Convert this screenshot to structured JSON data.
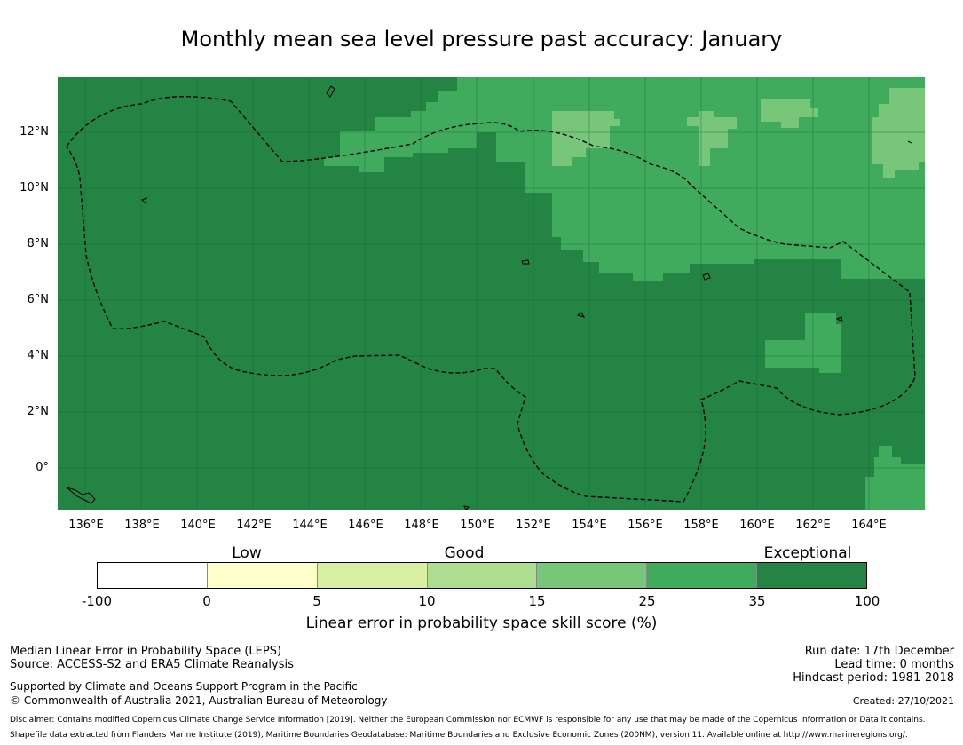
{
  "title": "Monthly mean sea level pressure past accuracy: January",
  "map": {
    "lat_labels": [
      "12°N",
      "10°N",
      "8°N",
      "6°N",
      "4°N",
      "2°N",
      "0°"
    ],
    "lon_labels": [
      "136°E",
      "138°E",
      "140°E",
      "142°E",
      "144°E",
      "146°E",
      "148°E",
      "150°E",
      "152°E",
      "154°E",
      "156°E",
      "158°E",
      "160°E",
      "162°E",
      "164°E"
    ],
    "colors": {
      "exceptional": "#238443",
      "high": "#41ab5d",
      "mid": "#78c679"
    }
  },
  "colorbar": {
    "category_labels": [
      "Low",
      "Good",
      "Exceptional"
    ],
    "tick_labels": [
      "-100",
      "0",
      "5",
      "10",
      "15",
      "25",
      "35",
      "100"
    ],
    "colors": [
      "#ffffff",
      "#ffffcc",
      "#d9f0a3",
      "#addd8e",
      "#78c679",
      "#41ab5d",
      "#238443"
    ],
    "title": "Linear error in probability space skill score (%)"
  },
  "footer": {
    "method": "Median Linear Error in Probability Space (LEPS)",
    "source": "Source: ACCESS-S2 and ERA5 Climate Reanalysis",
    "supported": "Supported by Climate and Oceans Support Program in the Pacific",
    "copyright": "© Commonwealth of Australia 2021, Australian Bureau of Meteorology",
    "run_date": "Run date: 17th December",
    "lead_time": "Lead time: 0 months",
    "hindcast": "Hindcast period: 1981-2018",
    "created": "Created: 27/10/2021",
    "disclaimer": "Disclaimer: Contains modified Copernicus Climate Change Service Information [2019]. Neither the European Commission nor ECMWF is responsible for any use that may be made of the Copernicus Information or Data it contains.",
    "shapefile": "Shapefile data extracted from Flanders Marine Institute (2019), Maritime Boundaries Geodatabase: Maritime Boundaries and Exclusive Economic Zones (200NM), version 11. Available online at http://www.marineregions.org/."
  }
}
